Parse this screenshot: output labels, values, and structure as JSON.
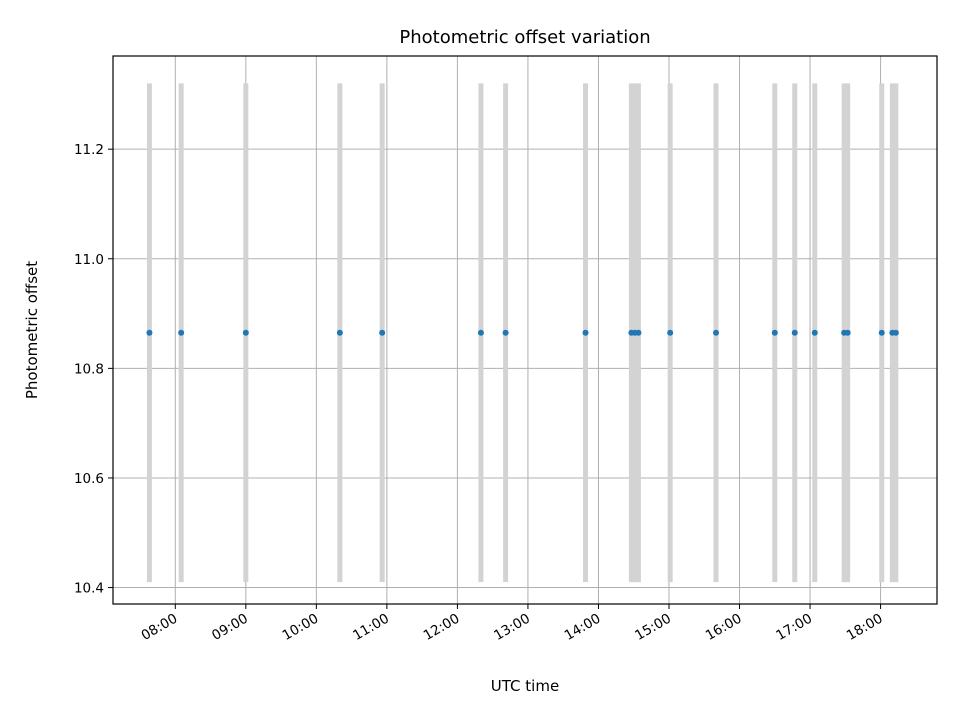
{
  "chart_data": {
    "type": "scatter",
    "title": "Photometric offset variation",
    "xlabel": "UTC time",
    "ylabel": "Photometric offset",
    "x_tick_labels": [
      "08:00",
      "09:00",
      "10:00",
      "11:00",
      "12:00",
      "13:00",
      "14:00",
      "15:00",
      "16:00",
      "17:00",
      "18:00"
    ],
    "y_tick_labels": [
      "10.4",
      "10.6",
      "10.8",
      "11.0",
      "11.2"
    ],
    "x_ticks": [
      "08:00",
      "09:00",
      "10:00",
      "11:00",
      "12:00",
      "13:00",
      "14:00",
      "15:00",
      "16:00",
      "17:00",
      "18:00"
    ],
    "y_ticks": [
      10.4,
      10.6,
      10.8,
      11.0,
      11.2
    ],
    "xlim": [
      "07:07",
      "18:48"
    ],
    "ylim": [
      10.37,
      11.37
    ],
    "grid": true,
    "colors": {
      "points": "#1f77b4",
      "errorbars": "#d3d3d3",
      "grid": "#b0b0b0"
    },
    "series": [
      {
        "points": [
          {
            "x": "07:38",
            "y": 10.865,
            "ylow": 10.41,
            "yhigh": 11.32
          },
          {
            "x": "08:05",
            "y": 10.865,
            "ylow": 10.41,
            "yhigh": 11.32
          },
          {
            "x": "09:00",
            "y": 10.865,
            "ylow": 10.41,
            "yhigh": 11.32
          },
          {
            "x": "10:20",
            "y": 10.865,
            "ylow": 10.41,
            "yhigh": 11.32
          },
          {
            "x": "10:56",
            "y": 10.865,
            "ylow": 10.41,
            "yhigh": 11.32
          },
          {
            "x": "12:20",
            "y": 10.865,
            "ylow": 10.41,
            "yhigh": 11.32
          },
          {
            "x": "12:41",
            "y": 10.865,
            "ylow": 10.41,
            "yhigh": 11.32
          },
          {
            "x": "13:49",
            "y": 10.865,
            "ylow": 10.41,
            "yhigh": 11.32
          },
          {
            "x": "14:28",
            "y": 10.865,
            "ylow": 10.41,
            "yhigh": 11.32
          },
          {
            "x": "14:31",
            "y": 10.865,
            "ylow": 10.41,
            "yhigh": 11.32
          },
          {
            "x": "14:34",
            "y": 10.865,
            "ylow": 10.41,
            "yhigh": 11.32
          },
          {
            "x": "15:01",
            "y": 10.865,
            "ylow": 10.41,
            "yhigh": 11.32
          },
          {
            "x": "15:40",
            "y": 10.865,
            "ylow": 10.41,
            "yhigh": 11.32
          },
          {
            "x": "16:30",
            "y": 10.865,
            "ylow": 10.41,
            "yhigh": 11.32
          },
          {
            "x": "16:47",
            "y": 10.865,
            "ylow": 10.41,
            "yhigh": 11.32
          },
          {
            "x": "17:04",
            "y": 10.865,
            "ylow": 10.41,
            "yhigh": 11.32
          },
          {
            "x": "17:29",
            "y": 10.865,
            "ylow": 10.41,
            "yhigh": 11.32
          },
          {
            "x": "17:32",
            "y": 10.865,
            "ylow": 10.41,
            "yhigh": 11.32
          },
          {
            "x": "18:01",
            "y": 10.865,
            "ylow": 10.41,
            "yhigh": 11.32
          },
          {
            "x": "18:10",
            "y": 10.865,
            "ylow": 10.41,
            "yhigh": 11.32
          },
          {
            "x": "18:13",
            "y": 10.865,
            "ylow": 10.41,
            "yhigh": 11.32
          }
        ]
      }
    ]
  }
}
